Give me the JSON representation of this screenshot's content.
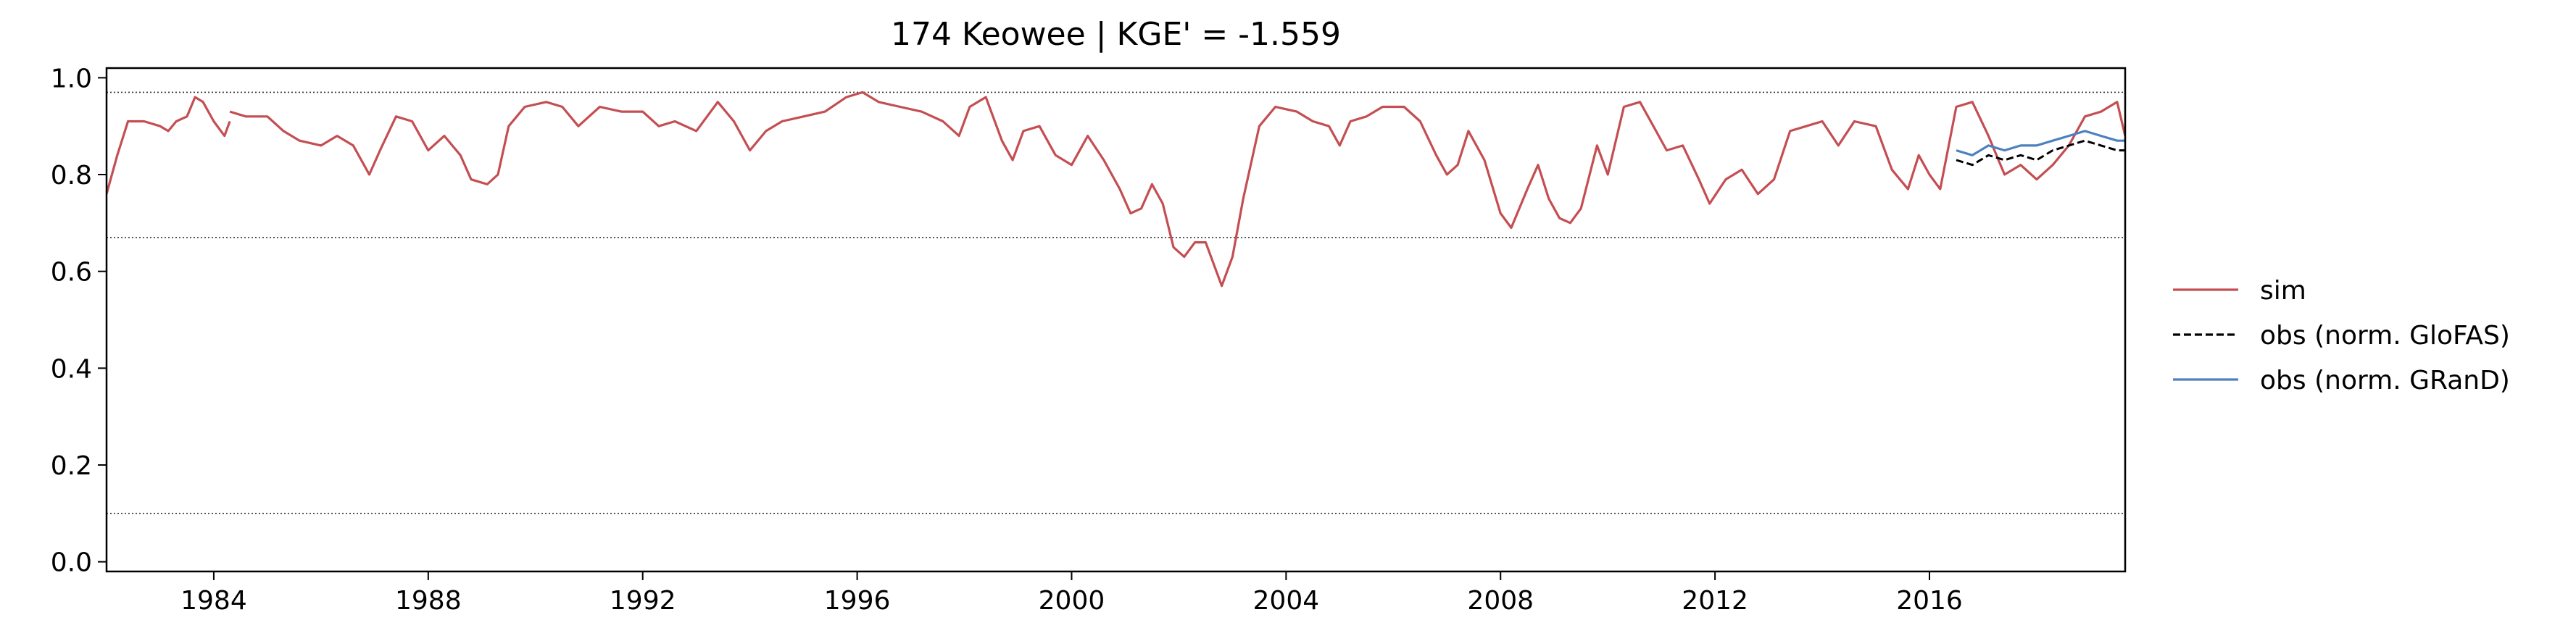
{
  "chart_data": {
    "type": "line",
    "title": "174  Keowee | KGE' = -1.559",
    "xlabel": "",
    "ylabel": "",
    "xlim": [
      1982.0,
      2019.65
    ],
    "ylim": [
      -0.02,
      1.02
    ],
    "x_ticks": [
      1984,
      1988,
      1992,
      1996,
      2000,
      2004,
      2008,
      2012,
      2016
    ],
    "x_tick_labels": [
      "1984",
      "1988",
      "1992",
      "1996",
      "2000",
      "2004",
      "2008",
      "2012",
      "2016"
    ],
    "y_ticks": [
      0.0,
      0.2,
      0.4,
      0.6,
      0.8,
      1.0
    ],
    "y_tick_labels": [
      "0.0",
      "0.2",
      "0.4",
      "0.6",
      "0.8",
      "1.0"
    ],
    "grid": false,
    "legend_position": "outside-right",
    "reference_lines": [
      0.97,
      0.67,
      0.1
    ],
    "series": [
      {
        "name": "sim",
        "color": "#c44e52",
        "style": "solid",
        "segments": [
          [
            [
              1982.0,
              0.76
            ],
            [
              1982.2,
              0.84
            ],
            [
              1982.4,
              0.91
            ],
            [
              1982.7,
              0.91
            ],
            [
              1983.0,
              0.9
            ],
            [
              1983.15,
              0.89
            ],
            [
              1983.3,
              0.91
            ],
            [
              1983.5,
              0.92
            ],
            [
              1983.65,
              0.96
            ],
            [
              1983.8,
              0.95
            ],
            [
              1984.0,
              0.91
            ],
            [
              1984.2,
              0.88
            ],
            [
              1984.3,
              0.91
            ]
          ],
          [
            [
              1984.3,
              0.93
            ],
            [
              1984.6,
              0.92
            ],
            [
              1985.0,
              0.92
            ],
            [
              1985.3,
              0.89
            ],
            [
              1985.6,
              0.87
            ],
            [
              1986.0,
              0.86
            ],
            [
              1986.3,
              0.88
            ],
            [
              1986.6,
              0.86
            ],
            [
              1986.9,
              0.8
            ],
            [
              1987.1,
              0.85
            ],
            [
              1987.4,
              0.92
            ],
            [
              1987.7,
              0.91
            ],
            [
              1988.0,
              0.85
            ],
            [
              1988.3,
              0.88
            ],
            [
              1988.6,
              0.84
            ],
            [
              1988.8,
              0.79
            ],
            [
              1989.1,
              0.78
            ],
            [
              1989.3,
              0.8
            ],
            [
              1989.5,
              0.9
            ],
            [
              1989.8,
              0.94
            ],
            [
              1990.2,
              0.95
            ],
            [
              1990.5,
              0.94
            ],
            [
              1990.8,
              0.9
            ],
            [
              1991.0,
              0.92
            ],
            [
              1991.2,
              0.94
            ],
            [
              1991.6,
              0.93
            ],
            [
              1992.0,
              0.93
            ],
            [
              1992.3,
              0.9
            ],
            [
              1992.6,
              0.91
            ],
            [
              1993.0,
              0.89
            ],
            [
              1993.4,
              0.95
            ],
            [
              1993.7,
              0.91
            ],
            [
              1994.0,
              0.85
            ],
            [
              1994.3,
              0.89
            ],
            [
              1994.6,
              0.91
            ],
            [
              1995.0,
              0.92
            ],
            [
              1995.4,
              0.93
            ],
            [
              1995.8,
              0.96
            ],
            [
              1996.1,
              0.97
            ],
            [
              1996.4,
              0.95
            ],
            [
              1996.8,
              0.94
            ],
            [
              1997.2,
              0.93
            ],
            [
              1997.6,
              0.91
            ],
            [
              1997.9,
              0.88
            ],
            [
              1998.1,
              0.94
            ],
            [
              1998.4,
              0.96
            ],
            [
              1998.7,
              0.87
            ],
            [
              1998.9,
              0.83
            ],
            [
              1999.1,
              0.89
            ],
            [
              1999.4,
              0.9
            ],
            [
              1999.7,
              0.84
            ],
            [
              2000.0,
              0.82
            ],
            [
              2000.3,
              0.88
            ],
            [
              2000.6,
              0.83
            ],
            [
              2000.9,
              0.77
            ],
            [
              2001.1,
              0.72
            ],
            [
              2001.3,
              0.73
            ],
            [
              2001.5,
              0.78
            ],
            [
              2001.7,
              0.74
            ],
            [
              2001.9,
              0.65
            ],
            [
              2002.1,
              0.63
            ],
            [
              2002.3,
              0.66
            ],
            [
              2002.5,
              0.66
            ],
            [
              2002.8,
              0.57
            ],
            [
              2003.0,
              0.63
            ],
            [
              2003.2,
              0.75
            ],
            [
              2003.5,
              0.9
            ],
            [
              2003.8,
              0.94
            ],
            [
              2004.2,
              0.93
            ],
            [
              2004.5,
              0.91
            ],
            [
              2004.8,
              0.9
            ],
            [
              2005.0,
              0.86
            ],
            [
              2005.2,
              0.91
            ],
            [
              2005.5,
              0.92
            ],
            [
              2005.8,
              0.94
            ],
            [
              2006.2,
              0.94
            ],
            [
              2006.5,
              0.91
            ],
            [
              2006.8,
              0.84
            ],
            [
              2007.0,
              0.8
            ],
            [
              2007.2,
              0.82
            ],
            [
              2007.4,
              0.89
            ],
            [
              2007.7,
              0.83
            ],
            [
              2008.0,
              0.72
            ],
            [
              2008.2,
              0.69
            ],
            [
              2008.5,
              0.77
            ],
            [
              2008.7,
              0.82
            ],
            [
              2008.9,
              0.75
            ],
            [
              2009.1,
              0.71
            ],
            [
              2009.3,
              0.7
            ],
            [
              2009.5,
              0.73
            ],
            [
              2009.8,
              0.86
            ],
            [
              2010.0,
              0.8
            ],
            [
              2010.3,
              0.94
            ],
            [
              2010.6,
              0.95
            ],
            [
              2010.9,
              0.89
            ],
            [
              2011.1,
              0.85
            ],
            [
              2011.4,
              0.86
            ],
            [
              2011.7,
              0.79
            ],
            [
              2011.9,
              0.74
            ],
            [
              2012.2,
              0.79
            ],
            [
              2012.5,
              0.81
            ],
            [
              2012.8,
              0.76
            ],
            [
              2013.1,
              0.79
            ],
            [
              2013.4,
              0.89
            ],
            [
              2013.7,
              0.9
            ],
            [
              2014.0,
              0.91
            ],
            [
              2014.3,
              0.86
            ],
            [
              2014.6,
              0.91
            ],
            [
              2015.0,
              0.9
            ],
            [
              2015.3,
              0.81
            ],
            [
              2015.6,
              0.77
            ],
            [
              2015.8,
              0.84
            ],
            [
              2016.0,
              0.8
            ],
            [
              2016.2,
              0.77
            ],
            [
              2016.5,
              0.94
            ],
            [
              2016.8,
              0.95
            ],
            [
              2017.1,
              0.88
            ],
            [
              2017.4,
              0.8
            ],
            [
              2017.7,
              0.82
            ],
            [
              2018.0,
              0.79
            ],
            [
              2018.3,
              0.82
            ],
            [
              2018.6,
              0.86
            ],
            [
              2018.9,
              0.92
            ],
            [
              2019.2,
              0.93
            ],
            [
              2019.5,
              0.95
            ],
            [
              2019.65,
              0.88
            ]
          ]
        ]
      },
      {
        "name": "obs (norm. GloFAS)",
        "color": "#000000",
        "style": "dashed",
        "segments": [
          [
            [
              2016.5,
              0.83
            ],
            [
              2016.8,
              0.82
            ],
            [
              2017.1,
              0.84
            ],
            [
              2017.4,
              0.83
            ],
            [
              2017.7,
              0.84
            ],
            [
              2018.0,
              0.83
            ],
            [
              2018.3,
              0.85
            ],
            [
              2018.6,
              0.86
            ],
            [
              2018.9,
              0.87
            ],
            [
              2019.2,
              0.86
            ],
            [
              2019.5,
              0.85
            ],
            [
              2019.65,
              0.85
            ]
          ]
        ]
      },
      {
        "name": "obs (norm. GRanD)",
        "color": "#4c81bf",
        "style": "solid",
        "segments": [
          [
            [
              2016.5,
              0.85
            ],
            [
              2016.8,
              0.84
            ],
            [
              2017.1,
              0.86
            ],
            [
              2017.4,
              0.85
            ],
            [
              2017.7,
              0.86
            ],
            [
              2018.0,
              0.86
            ],
            [
              2018.3,
              0.87
            ],
            [
              2018.6,
              0.88
            ],
            [
              2018.9,
              0.89
            ],
            [
              2019.2,
              0.88
            ],
            [
              2019.5,
              0.87
            ],
            [
              2019.65,
              0.87
            ]
          ]
        ]
      }
    ]
  }
}
